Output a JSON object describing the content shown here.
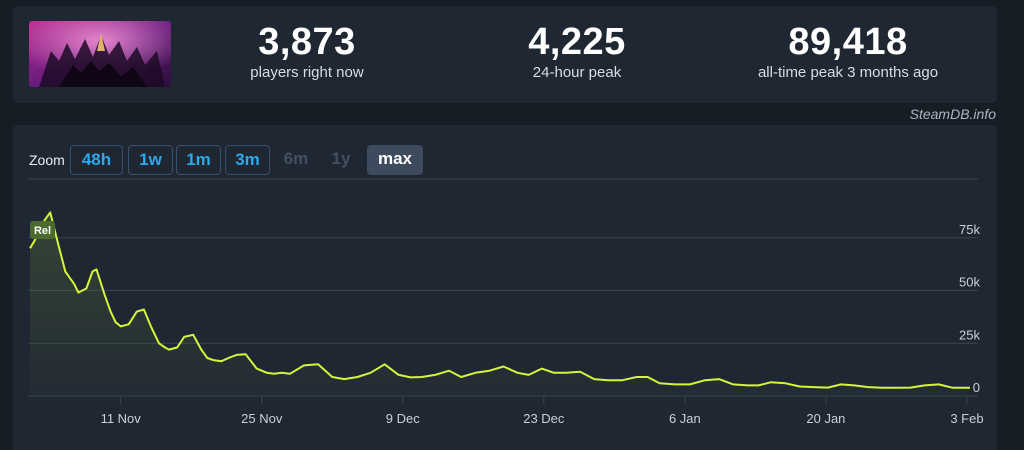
{
  "stats": {
    "current": {
      "value": "3,873",
      "label": "players right now"
    },
    "peak24": {
      "value": "4,225",
      "label": "24-hour peak"
    },
    "alltime": {
      "value": "89,418",
      "label": "all-time peak 3 months ago"
    }
  },
  "attribution": "SteamDB.info",
  "zoom": {
    "label": "Zoom",
    "options": [
      {
        "label": "48h",
        "state": "active"
      },
      {
        "label": "1w",
        "state": "active"
      },
      {
        "label": "1m",
        "state": "active"
      },
      {
        "label": "3m",
        "state": "active"
      },
      {
        "label": "6m",
        "state": "disabled"
      },
      {
        "label": "1y",
        "state": "disabled"
      },
      {
        "label": "max",
        "state": "selected"
      }
    ]
  },
  "colors": {
    "line": "#d6f53a",
    "grid": "#3a4452",
    "axis_text": "#c8d0da",
    "marker": "#4b6a2e"
  },
  "chart_data": {
    "type": "area",
    "title": "",
    "xlabel": "",
    "ylabel": "",
    "ylim": [
      0,
      100000
    ],
    "y_ticks": [
      0,
      25000,
      50000,
      75000
    ],
    "y_tick_labels": [
      "0",
      "25k",
      "50k",
      "75k"
    ],
    "x_tick_labels": [
      "11 Nov",
      "25 Nov",
      "9 Dec",
      "23 Dec",
      "6 Jan",
      "20 Jan",
      "3 Feb"
    ],
    "x_tick_days": [
      0,
      14,
      28,
      42,
      56,
      70,
      84
    ],
    "grid": true,
    "legend": "none",
    "marker_label": "Rel",
    "series": [
      {
        "x_days": [
          -9,
          -8,
          -7.6,
          -7,
          -6.2,
          -5.5,
          -4.6,
          -4.2,
          -3.4,
          -2.8,
          -2.4,
          -1.6,
          -1,
          -0.5,
          0,
          0.8,
          1.6,
          2.3,
          3,
          3.8,
          4.4,
          4.8,
          5.6,
          6.3,
          7.2,
          8,
          8.6,
          9.2,
          10,
          10.7,
          11.5,
          12.4,
          13.5,
          14.5,
          15.2,
          16,
          16.8,
          18.2,
          19.6,
          21,
          22.2,
          23.5,
          24.8,
          26.2,
          27.6,
          28.8,
          29.9,
          31.2,
          32.6,
          33.8,
          35.2,
          36.6,
          38,
          39.4,
          40.5,
          41.8,
          43,
          44.2,
          45.6,
          47,
          48.4,
          49.8,
          51.2,
          52.3,
          53.5,
          55,
          56.5,
          58,
          59.4,
          60.8,
          62.2,
          63.3,
          64.5,
          66,
          67.4,
          68.8,
          70.2,
          71.5,
          72.8,
          74.2,
          75.6,
          77,
          78.4,
          79.8,
          81.2,
          82.6,
          83.6,
          84.3
        ],
        "values": [
          70000,
          78000,
          83000,
          87000,
          72000,
          59000,
          53000,
          49000,
          51000,
          59000,
          60000,
          48000,
          40000,
          35000,
          33000,
          34000,
          40000,
          41000,
          33000,
          25000,
          23000,
          22000,
          23000,
          28000,
          29000,
          22000,
          18000,
          17000,
          16500,
          18000,
          19500,
          19800,
          13000,
          11000,
          10500,
          11000,
          10500,
          14500,
          15000,
          9000,
          8000,
          9000,
          11000,
          15000,
          10000,
          8800,
          9000,
          10000,
          12000,
          9000,
          11000,
          12000,
          14000,
          11000,
          10000,
          13000,
          11000,
          11000,
          11500,
          8000,
          7500,
          7500,
          9000,
          9000,
          6000,
          5500,
          5500,
          7500,
          8000,
          5500,
          5000,
          5000,
          6500,
          6000,
          4500,
          4200,
          4000,
          5500,
          5000,
          4200,
          3900,
          3900,
          4000,
          5000,
          5500,
          3900,
          3873,
          3873
        ]
      }
    ]
  }
}
